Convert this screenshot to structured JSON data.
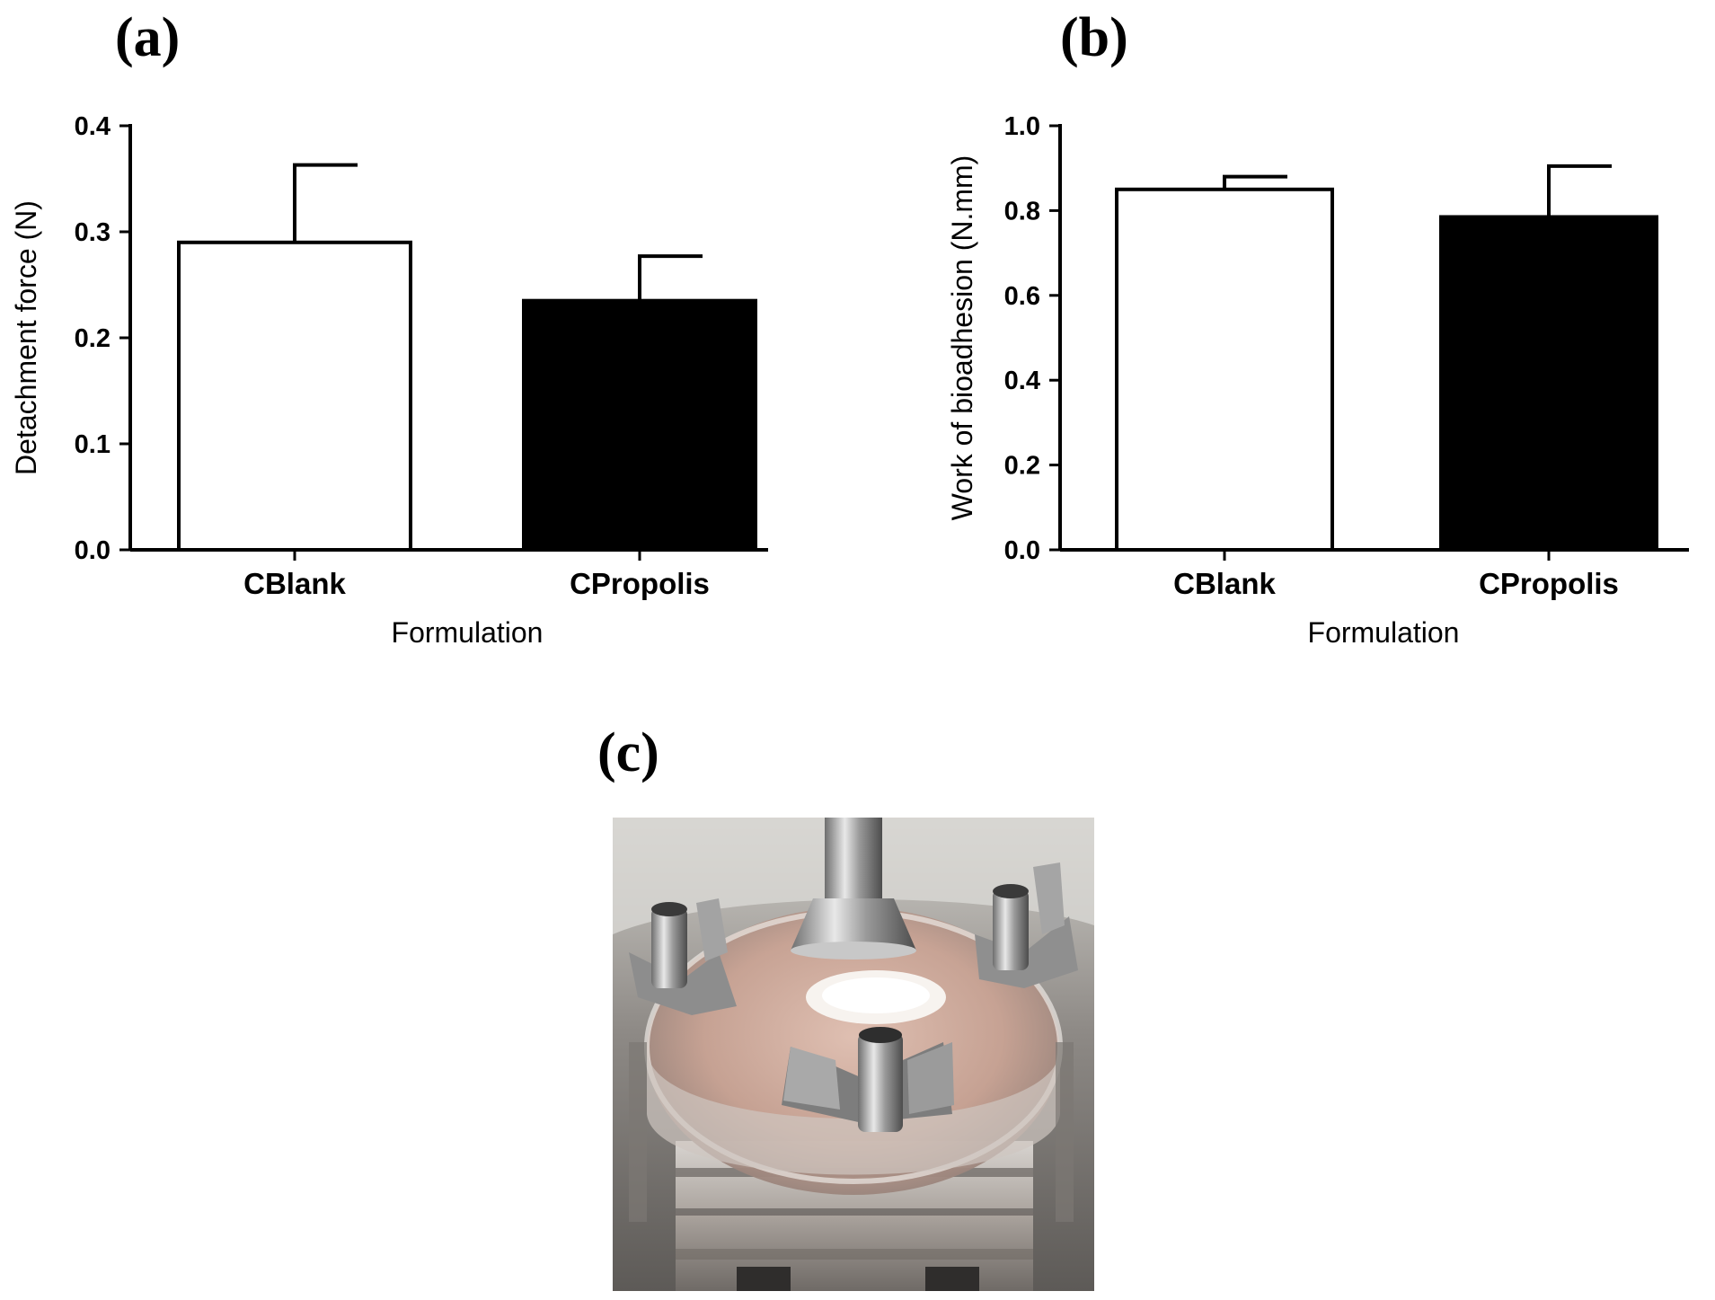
{
  "panels": {
    "a": "(a)",
    "b": "(b)",
    "c": "(c)"
  },
  "chart_data": [
    {
      "type": "bar",
      "panel": "(a)",
      "categories": [
        "CBlank",
        "CPropolis"
      ],
      "values": [
        0.29,
        0.235
      ],
      "errors": [
        0.073,
        0.042
      ],
      "bar_colors": [
        "#ffffff",
        "#000000"
      ],
      "xlabel": "Formulation",
      "ylabel": "Detachment force (N)",
      "ylim": [
        0,
        0.4
      ],
      "yticks": [
        0.0,
        0.1,
        0.2,
        0.3,
        0.4
      ],
      "ytick_labels": [
        "0.0",
        "0.1",
        "0.2",
        "0.3",
        "0.4"
      ],
      "grid": false
    },
    {
      "type": "bar",
      "panel": "(b)",
      "categories": [
        "CBlank",
        "CPropolis"
      ],
      "values": [
        0.85,
        0.785
      ],
      "errors": [
        0.03,
        0.12
      ],
      "bar_colors": [
        "#ffffff",
        "#000000"
      ],
      "xlabel": "Formulation",
      "ylabel": "Work of bioadhesion  (N.mm)",
      "ylim": [
        0,
        1.0
      ],
      "yticks": [
        0.0,
        0.2,
        0.4,
        0.6,
        0.8,
        1.0
      ],
      "ytick_labels": [
        "0.0",
        "0.2",
        "0.4",
        "0.6",
        "0.8",
        "1.0"
      ],
      "grid": false
    }
  ],
  "photo": {
    "subject": "bioadhesion-test-apparatus-photo"
  }
}
